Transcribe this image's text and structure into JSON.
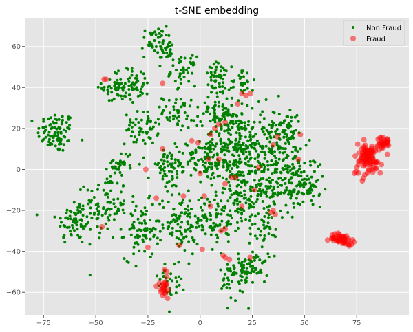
{
  "chart_data": {
    "type": "scatter",
    "title": "t-SNE embedding",
    "xlabel": "",
    "ylabel": "",
    "xlim": [
      -84,
      100
    ],
    "ylim": [
      -71,
      74
    ],
    "xticks": [
      -75,
      -50,
      -25,
      0,
      25,
      50,
      75
    ],
    "yticks": [
      -60,
      -40,
      -20,
      0,
      20,
      40,
      60
    ],
    "grid": true,
    "legend": "top-right",
    "series": [
      {
        "name": "Non Fraud",
        "color": "#008000",
        "marker": "small-dot",
        "clusters": [
          {
            "cx": -69,
            "cy": 18,
            "sx": 4.5,
            "sy": 5,
            "n": 90
          },
          {
            "cx": -60,
            "cy": -25,
            "sx": 4.5,
            "sy": 6,
            "n": 70
          },
          {
            "cx": -45,
            "cy": -18,
            "sx": 5,
            "sy": 8,
            "n": 90
          },
          {
            "cx": -40,
            "cy": 40,
            "sx": 3.5,
            "sy": 4,
            "n": 55
          },
          {
            "cx": -30,
            "cy": 42,
            "sx": 3,
            "sy": 4,
            "n": 40
          },
          {
            "cx": -22,
            "cy": 62,
            "sx": 3,
            "sy": 4,
            "n": 40
          },
          {
            "cx": -16,
            "cy": 58,
            "sx": 2.5,
            "sy": 3,
            "n": 25
          },
          {
            "cx": -8,
            "cy": 48,
            "sx": 3,
            "sy": 3.5,
            "n": 40
          },
          {
            "cx": 9,
            "cy": 44,
            "sx": 3.5,
            "sy": 4,
            "n": 50
          },
          {
            "cx": 20,
            "cy": 43,
            "sx": 3,
            "sy": 4,
            "n": 30
          },
          {
            "cx": -28,
            "cy": 20,
            "sx": 4,
            "sy": 4,
            "n": 55
          },
          {
            "cx": -38,
            "cy": 3,
            "sx": 3,
            "sy": 3,
            "n": 30
          },
          {
            "cx": -10,
            "cy": 28,
            "sx": 4,
            "sy": 4,
            "n": 50
          },
          {
            "cx": -15,
            "cy": 0,
            "sx": 5,
            "sy": 5,
            "n": 70
          },
          {
            "cx": -28,
            "cy": -30,
            "sx": 4,
            "sy": 7,
            "n": 80
          },
          {
            "cx": -10,
            "cy": -25,
            "sx": 5,
            "sy": 8,
            "n": 90
          },
          {
            "cx": 3,
            "cy": 5,
            "sx": 4,
            "sy": 5,
            "n": 60
          },
          {
            "cx": 15,
            "cy": 10,
            "sx": 7,
            "sy": 10,
            "n": 220
          },
          {
            "cx": 30,
            "cy": 10,
            "sx": 7,
            "sy": 10,
            "n": 160
          },
          {
            "cx": 10,
            "cy": 28,
            "sx": 5,
            "sy": 4,
            "n": 60
          },
          {
            "cx": 40,
            "cy": 20,
            "sx": 4,
            "sy": 5,
            "n": 60
          },
          {
            "cx": 45,
            "cy": 2,
            "sx": 4,
            "sy": 6,
            "n": 70
          },
          {
            "cx": 50,
            "cy": -10,
            "sx": 5,
            "sy": 5,
            "n": 70
          },
          {
            "cx": 36,
            "cy": -8,
            "sx": 4,
            "sy": 5,
            "n": 60
          },
          {
            "cx": 20,
            "cy": -15,
            "sx": 6,
            "sy": 7,
            "n": 110
          },
          {
            "cx": 5,
            "cy": -25,
            "sx": 6,
            "sy": 6,
            "n": 80
          },
          {
            "cx": 18,
            "cy": -52,
            "sx": 4,
            "sy": 6,
            "n": 70
          },
          {
            "cx": 27,
            "cy": -47,
            "sx": 3,
            "sy": 4,
            "n": 40
          },
          {
            "cx": -15,
            "cy": -55,
            "sx": 3,
            "sy": 5,
            "n": 35
          },
          {
            "cx": 32,
            "cy": -28,
            "sx": 3,
            "sy": 4,
            "n": 30
          }
        ]
      },
      {
        "name": "Fraud",
        "color": "#ff0000",
        "marker": "large-circle",
        "clusters": [
          {
            "cx": 80,
            "cy": 5,
            "sx": 3.5,
            "sy": 4,
            "n": 90
          },
          {
            "cx": 88,
            "cy": 13,
            "sx": 1.5,
            "sy": 1.5,
            "n": 30
          },
          {
            "cx": 68,
            "cy": -34,
            "sx": 3,
            "sy": 1.3,
            "n": 45
          },
          {
            "cx": -17,
            "cy": -57,
            "sx": 1.5,
            "sy": 3,
            "n": 20
          }
        ],
        "points": [
          [
            -46,
            44
          ],
          [
            -45,
            44
          ],
          [
            -18,
            42
          ],
          [
            -47,
            -28
          ],
          [
            -26,
            0
          ],
          [
            -25,
            -38
          ],
          [
            -21,
            -14
          ],
          [
            -21,
            -57
          ],
          [
            -10,
            -37
          ],
          [
            -8,
            -13
          ],
          [
            -18,
            10
          ],
          [
            -4,
            14
          ],
          [
            -1,
            13
          ],
          [
            0,
            -2
          ],
          [
            2,
            -13
          ],
          [
            1,
            -39
          ],
          [
            5,
            -18
          ],
          [
            7,
            20
          ],
          [
            9,
            22
          ],
          [
            12,
            23
          ],
          [
            12,
            -7
          ],
          [
            15,
            -4
          ],
          [
            17,
            -4
          ],
          [
            11,
            -42
          ],
          [
            12,
            -43
          ],
          [
            14,
            -44
          ],
          [
            12,
            -29
          ],
          [
            10,
            -30
          ],
          [
            20,
            37
          ],
          [
            20,
            -18
          ],
          [
            24,
            37
          ],
          [
            26,
            -10
          ],
          [
            28,
            1
          ],
          [
            24,
            -43
          ],
          [
            35,
            -20
          ],
          [
            36,
            -22
          ],
          [
            35,
            12
          ],
          [
            37,
            16
          ],
          [
            47,
            5
          ],
          [
            48,
            17
          ],
          [
            5,
            17
          ],
          [
            4,
            5
          ],
          [
            9,
            5
          ],
          [
            18,
            32
          ],
          [
            -17,
            -49
          ],
          [
            -16,
            -50
          ],
          [
            22,
            36
          ],
          [
            34,
            -21
          ]
        ]
      }
    ]
  }
}
